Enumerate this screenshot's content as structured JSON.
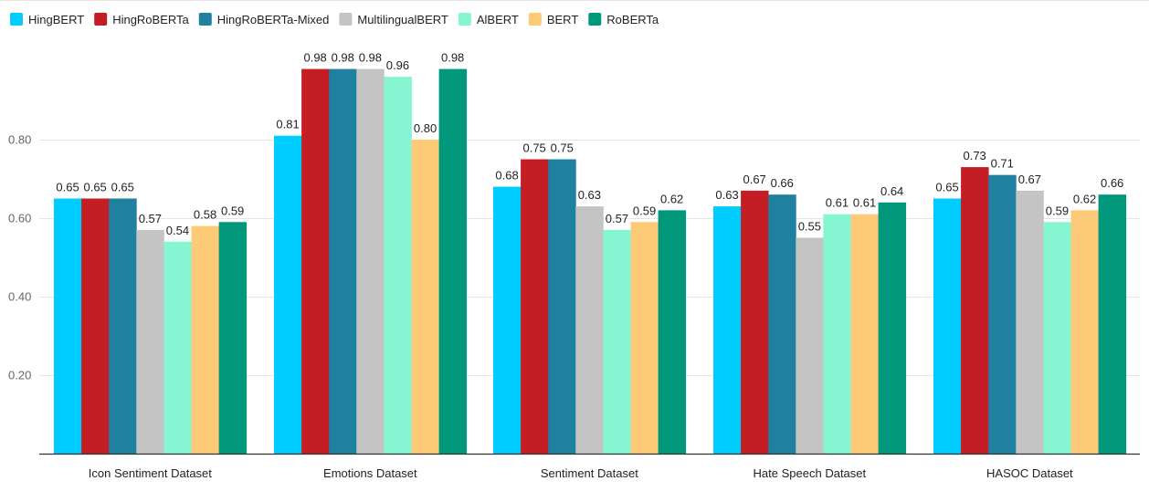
{
  "chart_data": {
    "type": "bar",
    "title": "",
    "xlabel": "",
    "ylabel": "",
    "ylim": [
      0,
      1.0
    ],
    "yticks": [
      "0.20",
      "0.40",
      "0.60",
      "0.80"
    ],
    "ytick_values": [
      0.2,
      0.4,
      0.6,
      0.8
    ],
    "grid": true,
    "legend_position": "top-left",
    "categories": [
      "Icon Sentiment Dataset",
      "Emotions Dataset",
      "Sentiment Dataset",
      "Hate Speech Dataset",
      "HASOC Dataset"
    ],
    "series": [
      {
        "name": "HingBERT",
        "color": "#00ccff",
        "values": [
          0.65,
          0.81,
          0.68,
          0.63,
          0.65
        ],
        "labels": [
          "0.65",
          "0.81",
          "0.68",
          "0.63",
          "0.65"
        ]
      },
      {
        "name": "HingRoBERTa",
        "color": "#c41e24",
        "values": [
          0.65,
          0.98,
          0.75,
          0.67,
          0.73
        ],
        "labels": [
          "0.65",
          "0.98",
          "0.75",
          "0.67",
          "0.73"
        ]
      },
      {
        "name": "HingRoBERTa-Mixed",
        "color": "#1f80a0",
        "values": [
          0.65,
          0.98,
          0.75,
          0.66,
          0.71
        ],
        "labels": [
          "0.65",
          "0.98",
          "0.75",
          "0.66",
          "0.71"
        ]
      },
      {
        "name": "MultilingualBERT",
        "color": "#c4c4c4",
        "values": [
          0.57,
          0.98,
          0.63,
          0.55,
          0.67
        ],
        "labels": [
          "0.57",
          "0.98",
          "0.63",
          "0.55",
          "0.67"
        ]
      },
      {
        "name": "AlBERT",
        "color": "#85f5d2",
        "values": [
          0.54,
          0.96,
          0.57,
          0.61,
          0.59
        ],
        "labels": [
          "0.54",
          "0.96",
          "0.57",
          "0.61",
          "0.59"
        ]
      },
      {
        "name": "BERT",
        "color": "#fdca78",
        "values": [
          0.58,
          0.8,
          0.59,
          0.61,
          0.62
        ],
        "labels": [
          "0.58",
          "0.80",
          "0.59",
          "0.61",
          "0.62"
        ]
      },
      {
        "name": "RoBERTa",
        "color": "#00977a",
        "values": [
          0.59,
          0.98,
          0.62,
          0.64,
          0.66
        ],
        "labels": [
          "0.59",
          "0.98",
          "0.62",
          "0.64",
          "0.66"
        ]
      }
    ]
  }
}
